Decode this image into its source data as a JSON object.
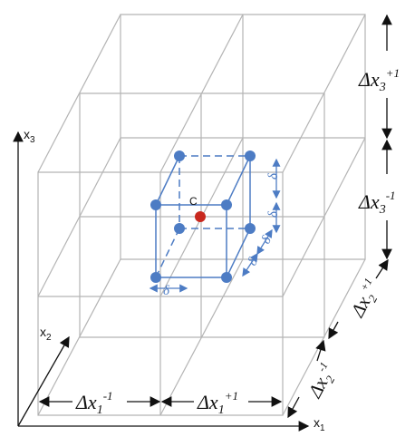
{
  "axes": {
    "x1": "x",
    "x1_sub": "1",
    "x2": "x",
    "x2_sub": "2",
    "x3": "x",
    "x3_sub": "3"
  },
  "center_label": "C",
  "delta_symbol": "δ",
  "intervals": {
    "base": "Δx",
    "dx1_minus": {
      "sub": "1",
      "sup": "-1"
    },
    "dx1_plus": {
      "sub": "1",
      "sup": "+1"
    },
    "dx2_minus": {
      "sub": "2",
      "sup": "-1"
    },
    "dx2_plus": {
      "sub": "2",
      "sup": "+1"
    },
    "dx3_minus": {
      "sub": "3",
      "sup": "-1"
    },
    "dx3_plus": {
      "sub": "3",
      "sup": "+1"
    }
  },
  "colors": {
    "grid": "#b4b4b4",
    "cube": "#4d7cc4",
    "center_dot": "#c8281e",
    "arrows": "#111111"
  }
}
